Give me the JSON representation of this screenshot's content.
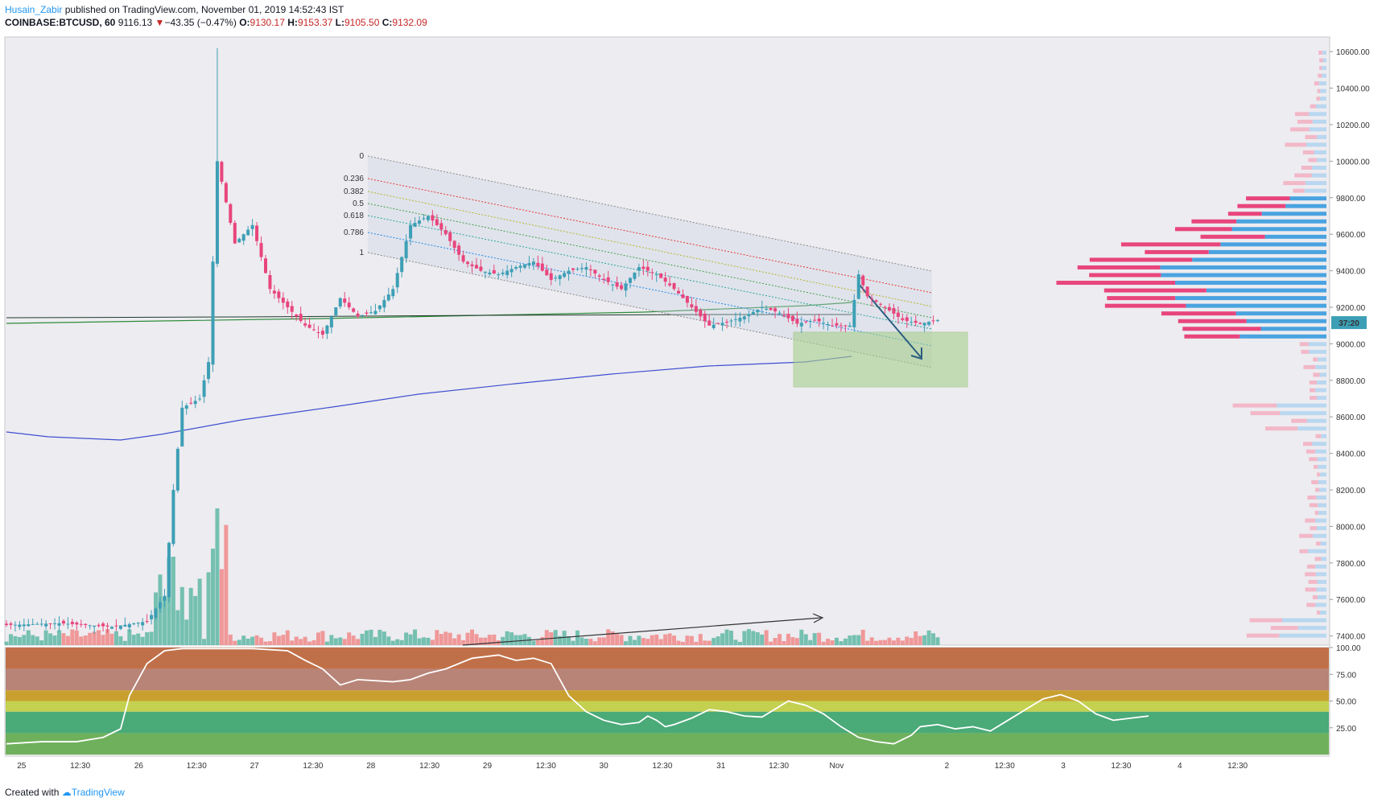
{
  "header": {
    "author": "Husain_Zabir",
    "published": "published on TradingView.com, November 01, 2019 14:52:43 IST",
    "symbol": "COINBASE:BTCUSD, 60",
    "last": "9116.13",
    "change_arrow": "▼",
    "change": "−43.35 (−0.47%)",
    "o_label": "O:",
    "o_value": "9130.17",
    "h_label": "H:",
    "h_value": "9153.37",
    "l_label": "L:",
    "l_value": "9105.50",
    "c_label": "C:",
    "c_value": "9132.09"
  },
  "footer": {
    "created_with": "Created with",
    "brand": "TradingView"
  },
  "price_badge": "37:20",
  "colors": {
    "up": "#3d9fb5",
    "down": "#e8457c",
    "vol_up": "#5fb8a6",
    "vol_down": "#f08a8a",
    "ma_blue": "#3f4fd0",
    "ma_green": "#2e8b3a",
    "zone": "#a8d08d",
    "badge": "#3d9fb5"
  },
  "chart_data": [
    {
      "type": "candlestick",
      "title": "COINBASE:BTCUSD, 60",
      "yaxis_ticks": [
        "10600.00",
        "10400.00",
        "10200.00",
        "10000.00",
        "9800.00",
        "9600.00",
        "9400.00",
        "9200.00",
        "9000.00",
        "8800.00",
        "8600.00",
        "8400.00",
        "8200.00",
        "8000.00",
        "7800.00",
        "7600.00",
        "7400.00"
      ],
      "ylim": [
        7350,
        10680
      ],
      "xaxis_ticks": [
        "25",
        "12:30",
        "26",
        "12:30",
        "27",
        "12:30",
        "28",
        "12:30",
        "29",
        "12:30",
        "30",
        "12:30",
        "31",
        "12:30",
        "Nov",
        "2",
        "12:30",
        "3",
        "12:30",
        "4",
        "12:30"
      ],
      "close_path": [
        [
          0,
          7460
        ],
        [
          12,
          7470
        ],
        [
          24,
          7450
        ],
        [
          32,
          7480
        ],
        [
          36,
          7620
        ],
        [
          38,
          8200
        ],
        [
          40,
          8650
        ],
        [
          44,
          8700
        ],
        [
          46,
          8900
        ],
        [
          48,
          10000
        ],
        [
          52,
          9550
        ],
        [
          56,
          9650
        ],
        [
          60,
          9300
        ],
        [
          64,
          9200
        ],
        [
          68,
          9100
        ],
        [
          72,
          9050
        ],
        [
          76,
          9250
        ],
        [
          80,
          9150
        ],
        [
          84,
          9180
        ],
        [
          88,
          9300
        ],
        [
          92,
          9650
        ],
        [
          96,
          9700
        ],
        [
          100,
          9600
        ],
        [
          104,
          9450
        ],
        [
          108,
          9400
        ],
        [
          112,
          9380
        ],
        [
          116,
          9420
        ],
        [
          120,
          9450
        ],
        [
          124,
          9350
        ],
        [
          128,
          9400
        ],
        [
          132,
          9420
        ],
        [
          136,
          9350
        ],
        [
          140,
          9300
        ],
        [
          144,
          9420
        ],
        [
          148,
          9380
        ],
        [
          152,
          9300
        ],
        [
          156,
          9200
        ],
        [
          160,
          9100
        ],
        [
          164,
          9120
        ],
        [
          168,
          9150
        ],
        [
          172,
          9200
        ],
        [
          176,
          9170
        ],
        [
          180,
          9110
        ],
        [
          184,
          9130
        ],
        [
          188,
          9100
        ],
        [
          192,
          9100
        ],
        [
          194,
          9380
        ],
        [
          196,
          9260
        ],
        [
          200,
          9200
        ],
        [
          204,
          9130
        ],
        [
          208,
          9110
        ],
        [
          212,
          9130
        ]
      ],
      "fib_channel": {
        "levels": [
          "0",
          "0.236",
          "0.382",
          "0.5",
          "0.618",
          "0.786",
          "1"
        ]
      },
      "annotations": [
        "target-zone",
        "down-arrow"
      ]
    },
    {
      "type": "line",
      "title": "",
      "yaxis_ticks": [
        "100.00",
        "75.00",
        "50.00",
        "25.00"
      ],
      "ylim": [
        0,
        100
      ],
      "bands": [
        {
          "from": 80,
          "to": 100,
          "color": "#c07048"
        },
        {
          "from": 60,
          "to": 80,
          "color": "#b88478"
        },
        {
          "from": 50,
          "to": 60,
          "color": "#c9a030"
        },
        {
          "from": 40,
          "to": 50,
          "color": "#c4d050"
        },
        {
          "from": 20,
          "to": 40,
          "color": "#4aaa78"
        },
        {
          "from": 0,
          "to": 20,
          "color": "#6fb05c"
        }
      ],
      "series": [
        {
          "values": [
            [
              0,
              10
            ],
            [
              8,
              12
            ],
            [
              16,
              12
            ],
            [
              22,
              16
            ],
            [
              26,
              24
            ],
            [
              28,
              55
            ],
            [
              32,
              85
            ],
            [
              36,
              97
            ],
            [
              40,
              99
            ],
            [
              48,
              99
            ],
            [
              56,
              99
            ],
            [
              64,
              97
            ],
            [
              68,
              88
            ],
            [
              72,
              80
            ],
            [
              76,
              65
            ],
            [
              80,
              70
            ],
            [
              88,
              68
            ],
            [
              92,
              70
            ],
            [
              96,
              76
            ],
            [
              100,
              80
            ],
            [
              106,
              90
            ],
            [
              112,
              93
            ],
            [
              116,
              88
            ],
            [
              120,
              90
            ],
            [
              124,
              85
            ],
            [
              128,
              55
            ],
            [
              132,
              40
            ],
            [
              136,
              32
            ],
            [
              140,
              28
            ],
            [
              144,
              30
            ],
            [
              146,
              36
            ],
            [
              148,
              32
            ],
            [
              150,
              26
            ],
            [
              152,
              28
            ],
            [
              156,
              34
            ],
            [
              160,
              42
            ],
            [
              164,
              40
            ],
            [
              168,
              36
            ],
            [
              172,
              35
            ],
            [
              174,
              40
            ],
            [
              178,
              50
            ],
            [
              182,
              46
            ],
            [
              186,
              38
            ],
            [
              190,
              26
            ],
            [
              194,
              16
            ],
            [
              198,
              12
            ],
            [
              202,
              10
            ],
            [
              206,
              18
            ],
            [
              208,
              26
            ],
            [
              212,
              28
            ],
            [
              216,
              24
            ],
            [
              220,
              26
            ],
            [
              224,
              22
            ],
            [
              228,
              32
            ],
            [
              232,
              42
            ],
            [
              236,
              52
            ],
            [
              240,
              56
            ],
            [
              244,
              50
            ],
            [
              248,
              38
            ],
            [
              252,
              32
            ],
            [
              256,
              34
            ],
            [
              260,
              36
            ]
          ]
        }
      ],
      "trend_line": true
    }
  ]
}
